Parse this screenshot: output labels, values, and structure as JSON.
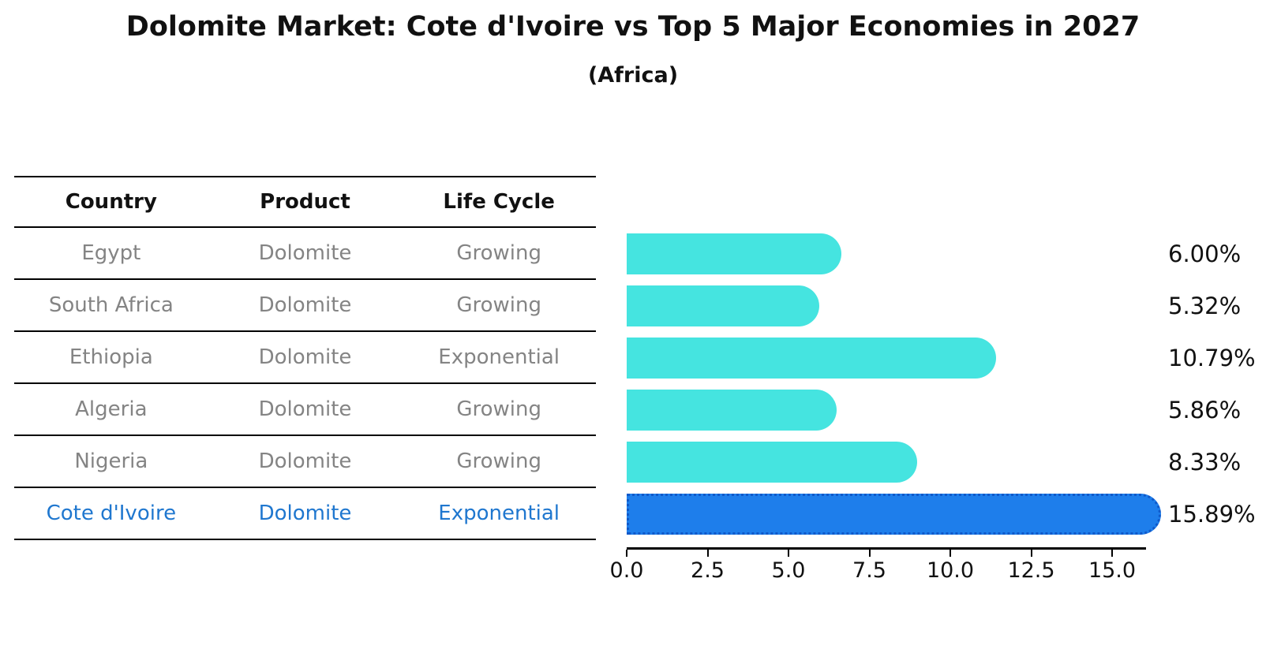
{
  "title": "Dolomite Market: Cote d'Ivoire vs Top 5 Major Economies in 2027",
  "subtitle": "(Africa)",
  "table": {
    "headers": [
      "Country",
      "Product",
      "Life Cycle"
    ],
    "rows": [
      {
        "country": "Egypt",
        "product": "Dolomite",
        "life_cycle": "Growing",
        "highlight": false
      },
      {
        "country": "South Africa",
        "product": "Dolomite",
        "life_cycle": "Growing",
        "highlight": false
      },
      {
        "country": "Ethiopia",
        "product": "Dolomite",
        "life_cycle": "Exponential",
        "highlight": false
      },
      {
        "country": "Algeria",
        "product": "Dolomite",
        "life_cycle": "Growing",
        "highlight": false
      },
      {
        "country": "Nigeria",
        "product": "Dolomite",
        "life_cycle": "Growing",
        "highlight": false
      },
      {
        "country": "Cote d'Ivoire",
        "product": "Dolomite",
        "life_cycle": "Exponential",
        "highlight": true
      }
    ]
  },
  "chart_data": {
    "type": "bar",
    "orientation": "horizontal",
    "title": "Dolomite Market: Cote d'Ivoire vs Top 5 Major Economies in 2027",
    "subtitle": "(Africa)",
    "categories": [
      "Egypt",
      "South Africa",
      "Ethiopia",
      "Algeria",
      "Nigeria",
      "Cote d'Ivoire"
    ],
    "values": [
      6.0,
      5.32,
      10.79,
      5.86,
      8.33,
      15.89
    ],
    "value_labels": [
      "6.00%",
      "5.32%",
      "10.79%",
      "5.86%",
      "8.33%",
      "15.89%"
    ],
    "x_ticks": [
      0.0,
      2.5,
      5.0,
      7.5,
      10.0,
      12.5,
      15.0
    ],
    "x_tick_labels": [
      "0.0",
      "2.5",
      "5.0",
      "7.5",
      "10.0",
      "12.5",
      "15.0"
    ],
    "xlim": [
      0,
      16.1
    ],
    "highlight_index": 5,
    "grid": false,
    "legend": false
  },
  "colors": {
    "bar": "#45E4E0",
    "highlight_bar": "#1E7EEB",
    "highlight_bar_edge": "#1059C9",
    "highlight_text": "#1F77CF",
    "table_text": "#848484",
    "header_text": "#111111",
    "axis": "#000000",
    "label_text": "#111111"
  }
}
